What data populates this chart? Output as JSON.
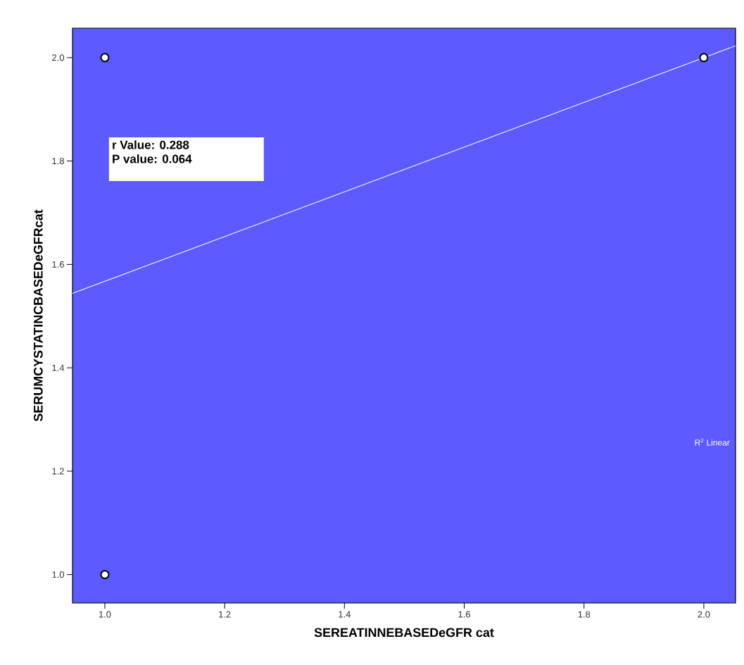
{
  "chart_data": {
    "type": "scatter",
    "xlabel": "SEREATINNEBASEDeGFR cat",
    "ylabel": "SERUMCYSTATINCBASEDeGFRcat",
    "xlim": [
      0.946,
      2.053
    ],
    "ylim": [
      0.945,
      2.057
    ],
    "xticks": [
      {
        "value": 1.0,
        "label": "1.0"
      },
      {
        "value": 1.2,
        "label": "1.2"
      },
      {
        "value": 1.4,
        "label": "1.4"
      },
      {
        "value": 1.6,
        "label": "1.6"
      },
      {
        "value": 1.8,
        "label": "1.8"
      },
      {
        "value": 2.0,
        "label": "2.0"
      }
    ],
    "yticks": [
      {
        "value": 1.0,
        "label": "1.0"
      },
      {
        "value": 1.2,
        "label": "1.2"
      },
      {
        "value": 1.4,
        "label": "1.4"
      },
      {
        "value": 1.6,
        "label": "1.6"
      },
      {
        "value": 1.8,
        "label": "1.8"
      },
      {
        "value": 2.0,
        "label": "2.0"
      }
    ],
    "marker": "circle",
    "series": [
      {
        "type": "scatter",
        "color": "#ffffff",
        "x": [
          1.0,
          1.0,
          2.0
        ],
        "values": [
          2.0,
          1.0,
          2.0
        ]
      },
      {
        "type": "line",
        "marker": "none",
        "color": "#e8e8f8",
        "x": [
          0.946,
          2.053
        ],
        "values": [
          1.544,
          2.023
        ]
      }
    ],
    "annotations": [
      "**r Value: 0.288**",
      "**P value: 0.064**",
      "R$^{2}$ Linear"
    ]
  }
}
